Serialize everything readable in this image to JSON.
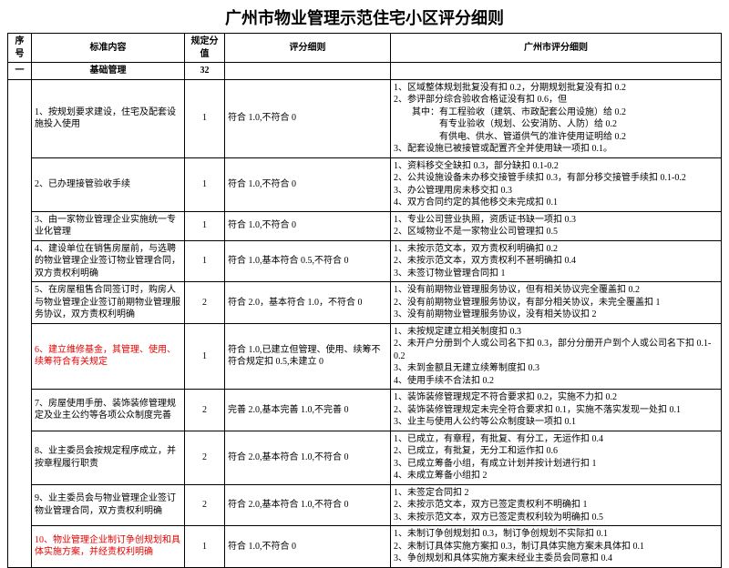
{
  "title": "广州市物业管理示范住宅小区评分细则",
  "headers": {
    "seq": "序号",
    "std": "标准内容",
    "score": "规定分值",
    "rule": "评分细则",
    "city": "广州市评分细则"
  },
  "section": {
    "seq": "一",
    "name": "基础管理",
    "score": "32"
  },
  "rows": [
    {
      "std": "1、按规划要求建设，住宅及配套设施投入使用",
      "score": "1",
      "rule": "符合 1.0,不符合 0",
      "city": "1、区域整体规划批复没有扣 0.2，分期规划批复没有扣 0.2\n2、参评部分综合验收合格证没有扣 0.6，但\n　　其中：有工程验收（建筑、市政配套公用设施）给 0.2\n　　　　　有专业验收（规划、公安消防、人防）给 0.2\n　　　　　有供电、供水、管道供气的准许使用证明给 0.2\n3、配套设施已被接管或配置齐全并使用缺一项扣 0.1。"
    },
    {
      "std": "2、已办理接管验收手续",
      "score": "1",
      "rule": "符合 1.0,不符合 0",
      "city": "1、资料移交全缺扣 0.3，部分缺扣 0.1-0.2\n2、公共设施设备未办移交接管手续扣 0.3，有部分移交接管手续扣 0.1-0.2\n3、办公管理用房未移交扣 0.3\n4、双方合同约定的其他移交未完成扣 0.1"
    },
    {
      "std": "3、由一家物业管理企业实施统一专业化管理",
      "score": "1",
      "rule": "符合 1.0,不符合 0",
      "city": "1、专业公司营业执照，资质证书缺一项扣 0.3\n2、区域物业不是一家物业公司管理扣 0.5"
    },
    {
      "std": "4、建设单位在销售房屋前，与选聘的物业管理企业签订物业管理合同，双方责权利明确",
      "score": "1",
      "rule": "符合 1.0,基本符合 0.5,不符合 0",
      "city": "1、未按示范文本，双方责权利明确扣 0.2\n2、未按示范文本，双方责权利不甚明确扣 0.4\n3、未签订物业管理合同扣 1"
    },
    {
      "std": "5、在房屋租售合同签订时，购房人与物业管理企业签订前期物业管理服务协议，双方责权利明确",
      "score": "2",
      "rule": "符合 2.0，基本符合 1.0，不符合 0",
      "city": "1、没有前期物业管理服务协议，但有相关协议完全覆盖扣 0.2\n2、没有前期物业管理服务协议，有部分相关协议，未完全覆盖扣 1\n3、没有前期物业管理服务协议，没有相关协议扣 2"
    },
    {
      "std_red": true,
      "std": "6、建立维修基金，其管理、使用、续筹符合有关规定",
      "score": "1",
      "rule": "符合 1.0,已建立但管理、使用、续筹不符合规定扣 0.5,未建立 0",
      "city": "1、未按规定建立相关制度扣 0.3\n2、未开户分册到个人或公司名下扣 0.3，部分分册开户到个人或公司名下扣 0.1-0.2\n3、未到金额且无建立续筹制度扣 0.3\n4、使用手续不合法扣 0.2"
    },
    {
      "std": "7、房屋使用手册、装饰装修管理规定及业主公约等各项公众制度完善",
      "score": "2",
      "rule": "完善 2.0,基本完善 1.0,不完善 0",
      "city": "1、装饰装修管理规定不符合要求扣 0.2，实施不力扣 0.2\n2、装饰装修管理规定未完全符合要求扣 0.1，实施不落实发现一处扣 0.1\n3、业主与使用人公约等公众制度缺一项扣 0.1"
    },
    {
      "std": "8、业主委员会按规定程序成立，并按章程履行职责",
      "score": "2",
      "rule": "符合 2.0,基本符合 1.0,不符合 0",
      "city": "1、已成立，有章程，有批复、有分工，无运作扣 0.4\n2、已成立，有批复，无分工和运作扣 0.6\n3、已成立筹备小组，有成立计划并按计划进行扣 1\n4、未成立筹备小组扣 2"
    },
    {
      "std": "9、业主委员会与物业管理企业签订物业管理合同，双方责权利明确",
      "score": "2",
      "rule": "符合 2.0,基本符合 1.0,不符合 0",
      "city": "1、未签定合同扣 2\n2、未按示范文本，双方已签定责权利不明确扣 1\n3、未按示范文本，双方已签定责权利较为明确扣 0.5"
    },
    {
      "std_red": true,
      "std": "10、物业管理企业制订争创规划和具体实施方案，并经责权利明确",
      "score": "1",
      "rule": "符合 1.0,不符合 0",
      "city": "1、未制订争创规划扣 0.3，制订争创规划不实际扣 0.1\n2、未制订具体实施方案扣 0.3，制订具体实施方案未具体扣 0.1\n3、争创规划和具体实施方案未经业主委员会同意扣 0.4"
    }
  ]
}
